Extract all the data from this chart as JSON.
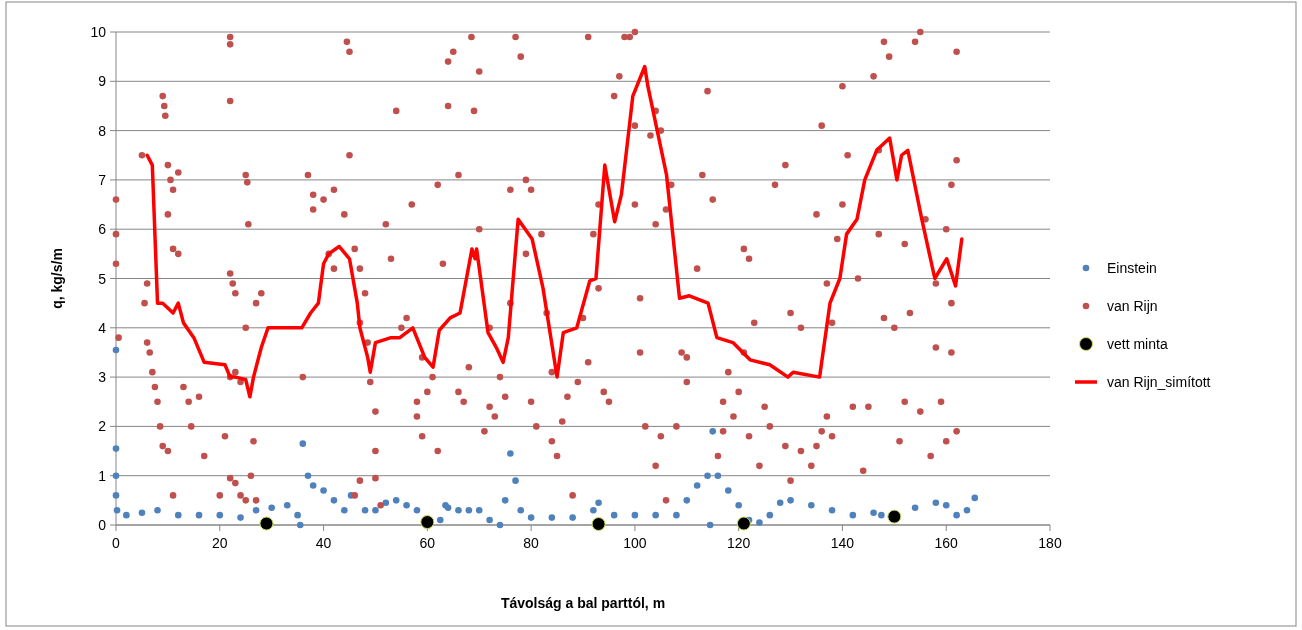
{
  "chart_data": {
    "type": "scatter",
    "xlabel": "Távolság a bal parttól, m",
    "ylabel": "q, kg/s/m",
    "xlim": [
      0,
      180
    ],
    "xticks": [
      0,
      20,
      40,
      60,
      80,
      100,
      120,
      140,
      160,
      180
    ],
    "ylim": [
      0,
      10
    ],
    "yticks": [
      0,
      1,
      2,
      3,
      4,
      5,
      6,
      7,
      8,
      9,
      10
    ],
    "grid": "y",
    "legend": "right",
    "series": [
      {
        "name": "Einstein",
        "color": "#4f81bd",
        "marker": "circle",
        "x": [
          0,
          0,
          0,
          0,
          0.2,
          2,
          5,
          8,
          12,
          16,
          20,
          24,
          27,
          30,
          33,
          35,
          35.5,
          36,
          37,
          38,
          40,
          42,
          44,
          45.3,
          48,
          50,
          52,
          54,
          56,
          58,
          62.5,
          63.5,
          64,
          66,
          68,
          70,
          72,
          74,
          75,
          76,
          77,
          78,
          80,
          84,
          88,
          92,
          93,
          96,
          100,
          104,
          108,
          110,
          112,
          114,
          114.5,
          115,
          116,
          118,
          120,
          122,
          124,
          126,
          128,
          130,
          134,
          138,
          142,
          146,
          147.5,
          154,
          158,
          160,
          162,
          164,
          165.5
        ],
        "values": [
          3.55,
          1.55,
          1.0,
          0.6,
          0.3,
          0.2,
          0.25,
          0.3,
          0.2,
          0.2,
          0.2,
          0.15,
          0.3,
          0.35,
          0.4,
          0.2,
          0.0,
          1.65,
          1.0,
          0.8,
          0.7,
          0.5,
          0.3,
          0.6,
          0.3,
          0.3,
          0.45,
          0.5,
          0.4,
          0.3,
          0.1,
          0.4,
          0.35,
          0.3,
          0.3,
          0.3,
          0.1,
          0.0,
          0.5,
          1.45,
          0.9,
          0.3,
          0.15,
          0.15,
          0.15,
          0.3,
          0.45,
          0.2,
          0.2,
          0.2,
          0.2,
          0.5,
          0.8,
          1.0,
          0.0,
          1.9,
          1.0,
          0.7,
          0.4,
          0.1,
          0.05,
          0.2,
          0.45,
          0.5,
          0.4,
          0.3,
          0.2,
          0.25,
          0.2,
          0.35,
          0.45,
          0.4,
          0.2,
          0.3,
          0.55
        ]
      },
      {
        "name": "van Rijn",
        "color": "#c0504d",
        "marker": "circle",
        "x": [
          0,
          0,
          0,
          0.5,
          5,
          6,
          5.5,
          6,
          6.5,
          7,
          7.5,
          8,
          8.5,
          9,
          9.3,
          9.5,
          10,
          10.5,
          11,
          10,
          11,
          12,
          12,
          9,
          10,
          13,
          14,
          14.5,
          16,
          17,
          11,
          20,
          22,
          22,
          22,
          25,
          25.3,
          25.5,
          22,
          22.5,
          23,
          25,
          23,
          22,
          24,
          21,
          22,
          23,
          24,
          25,
          26,
          26.5,
          27,
          28,
          27,
          36,
          37,
          38,
          38,
          40,
          41,
          42,
          42,
          44,
          44.5,
          45,
          45,
          46,
          47,
          47,
          48,
          48.5,
          49,
          50,
          50,
          50,
          51,
          46,
          47,
          52,
          53,
          54,
          55,
          56,
          57,
          58,
          58,
          59,
          59,
          60,
          61,
          62,
          62,
          63,
          64,
          64,
          65,
          66,
          66,
          67,
          68,
          68.5,
          69,
          70,
          70,
          71,
          72,
          72,
          73,
          74,
          75,
          76,
          76,
          77,
          78,
          79,
          79,
          80,
          80,
          81,
          82,
          83,
          84,
          84,
          85,
          86,
          87,
          88,
          89,
          90,
          91,
          91,
          92,
          93,
          93,
          94,
          95,
          96,
          97,
          98,
          99,
          100,
          100,
          100,
          101,
          101,
          102,
          103,
          104,
          104,
          105,
          106,
          107,
          105,
          104,
          106,
          109,
          110,
          110,
          108,
          112,
          113,
          114,
          115,
          116,
          117,
          117,
          118,
          119,
          120,
          121,
          122,
          121,
          122,
          123,
          124,
          125,
          126,
          127,
          129,
          130,
          129,
          130,
          132,
          132,
          134,
          135,
          135,
          136,
          136,
          137,
          137,
          138,
          138,
          139,
          140,
          140,
          141,
          142,
          143,
          144,
          145,
          146,
          147,
          148,
          149,
          148,
          150,
          151,
          152,
          153,
          154,
          155,
          156,
          157,
          158,
          158,
          159,
          160,
          160,
          161,
          162,
          162,
          161,
          161,
          162,
          155,
          152,
          147
        ],
        "values": [
          6.6,
          5.9,
          5.3,
          3.8,
          7.5,
          4.9,
          4.5,
          3.7,
          3.5,
          3.1,
          2.8,
          2.5,
          2.0,
          8.7,
          8.5,
          8.3,
          7.3,
          7.0,
          6.8,
          6.3,
          5.6,
          5.5,
          7.15,
          1.6,
          1.5,
          2.8,
          2.5,
          2.0,
          2.6,
          1.4,
          0.6,
          0.6,
          9.9,
          9.75,
          8.6,
          7.1,
          6.95,
          6.1,
          5.1,
          4.9,
          4.7,
          4.0,
          3.1,
          3.0,
          2.9,
          1.8,
          0.95,
          0.85,
          0.6,
          0.5,
          1.0,
          1.7,
          4.5,
          4.7,
          0.5,
          3.0,
          7.1,
          6.7,
          6.4,
          6.6,
          5.5,
          5.2,
          6.8,
          6.3,
          9.8,
          9.6,
          7.5,
          5.6,
          5.2,
          4.1,
          4.7,
          3.7,
          2.9,
          2.3,
          1.5,
          0.95,
          0.4,
          0.6,
          0.9,
          6.1,
          5.4,
          8.4,
          4.0,
          4.2,
          6.5,
          2.5,
          2.2,
          1.8,
          3.4,
          2.7,
          3.0,
          1.5,
          6.9,
          5.3,
          9.4,
          8.5,
          9.6,
          7.1,
          2.7,
          2.5,
          3.2,
          9.9,
          8.4,
          9.2,
          6.0,
          1.9,
          2.4,
          4.0,
          2.2,
          3.0,
          2.6,
          4.5,
          6.8,
          9.9,
          9.5,
          5.5,
          7.0,
          6.8,
          2.5,
          2.0,
          5.9,
          4.3,
          1.7,
          3.1,
          1.4,
          2.1,
          2.6,
          0.6,
          2.9,
          4.2,
          3.3,
          9.9,
          5.9,
          6.5,
          4.8,
          2.7,
          2.5,
          8.7,
          9.1,
          9.9,
          9.9,
          10.0,
          8.1,
          6.5,
          3.5,
          4.6,
          2.0,
          7.9,
          8.4,
          6.1,
          8.0,
          6.4,
          6.9,
          1.8,
          1.2,
          0.5,
          3.5,
          2.9,
          3.4,
          2.0,
          5.2,
          7.1,
          8.8,
          6.6,
          1.4,
          1.9,
          2.5,
          3.1,
          2.2,
          2.7,
          5.6,
          5.4,
          3.5,
          1.8,
          4.1,
          1.2,
          2.4,
          2.0,
          6.9,
          7.3,
          4.3,
          1.6,
          0.9,
          4.0,
          1.5,
          1.2,
          1.6,
          6.3,
          8.1,
          1.9,
          4.9,
          2.2,
          1.8,
          4.1,
          5.8,
          6.5,
          8.9,
          7.5,
          2.4,
          5.0,
          1.1,
          2.4,
          9.1,
          7.6,
          9.8,
          9.5,
          4.2,
          4.0,
          1.7,
          2.5,
          4.3,
          9.8,
          10.0,
          6.2,
          1.4,
          4.9,
          3.6,
          2.5,
          1.7,
          6.0,
          4.5,
          7.4,
          9.6,
          6.9,
          3.5,
          1.9,
          2.3,
          5.7,
          5.9
        ]
      },
      {
        "name": "vett minta",
        "color": "#000000",
        "marker": "circle",
        "x": [
          29,
          60,
          93,
          121,
          150
        ],
        "values": [
          0.03,
          0.06,
          0.02,
          0.03,
          0.17
        ]
      },
      {
        "name": "van Rijn_simított",
        "color": "#ff0000",
        "type": "line",
        "marker": "none",
        "line_style": "solid",
        "x": [
          6.0,
          7.0,
          8.0,
          9,
          11,
          12,
          13,
          15,
          17,
          21,
          22,
          23,
          25,
          25.8,
          26.5,
          28,
          29.3,
          35.8,
          37.5,
          39,
          40,
          41,
          43,
          45,
          46.5,
          47,
          48.5,
          49,
          50,
          53,
          54.7,
          57.2,
          59.5,
          61.1,
          62.3,
          64.4,
          66.3,
          68.6,
          69.2,
          69.5,
          71.7,
          73.3,
          74.6,
          75.6,
          77.5,
          80.2,
          82.3,
          85,
          86.2,
          88.8,
          91.3,
          92.5,
          94.2,
          96.1,
          97.4,
          99.6,
          101.9,
          102.5,
          106.1,
          108.6,
          110.5,
          114.1,
          115.8,
          118.9,
          122.2,
          126,
          129.5,
          130.5,
          135.6,
          137.6,
          139.5,
          140.8,
          142.8,
          144.3,
          146.6,
          149.1,
          150.5,
          151.4,
          152.6,
          155.3,
          157.8,
          160.1,
          161.8,
          163
        ],
        "values": [
          7.5,
          7.3,
          4.5,
          4.5,
          4.3,
          4.5,
          4.1,
          3.8,
          3.3,
          3.25,
          3.0,
          3.0,
          2.95,
          2.6,
          3.0,
          3.6,
          4.0,
          4.0,
          4.3,
          4.5,
          5.3,
          5.5,
          5.65,
          5.4,
          4.5,
          4.0,
          3.4,
          3.1,
          3.7,
          3.8,
          3.8,
          4.0,
          3.4,
          3.2,
          3.95,
          4.2,
          4.3,
          5.6,
          5.4,
          5.6,
          3.9,
          3.6,
          3.3,
          3.8,
          6.2,
          5.8,
          4.8,
          3.0,
          3.9,
          4.0,
          4.95,
          5.0,
          7.3,
          6.15,
          6.7,
          8.7,
          9.3,
          8.9,
          7.1,
          4.6,
          4.65,
          4.5,
          3.8,
          3.7,
          3.35,
          3.25,
          3.0,
          3.1,
          3.0,
          4.5,
          5.0,
          5.9,
          6.2,
          7.0,
          7.6,
          7.85,
          7.0,
          7.5,
          7.6,
          6.2,
          5.0,
          5.4,
          4.85,
          5.8
        ]
      }
    ]
  }
}
